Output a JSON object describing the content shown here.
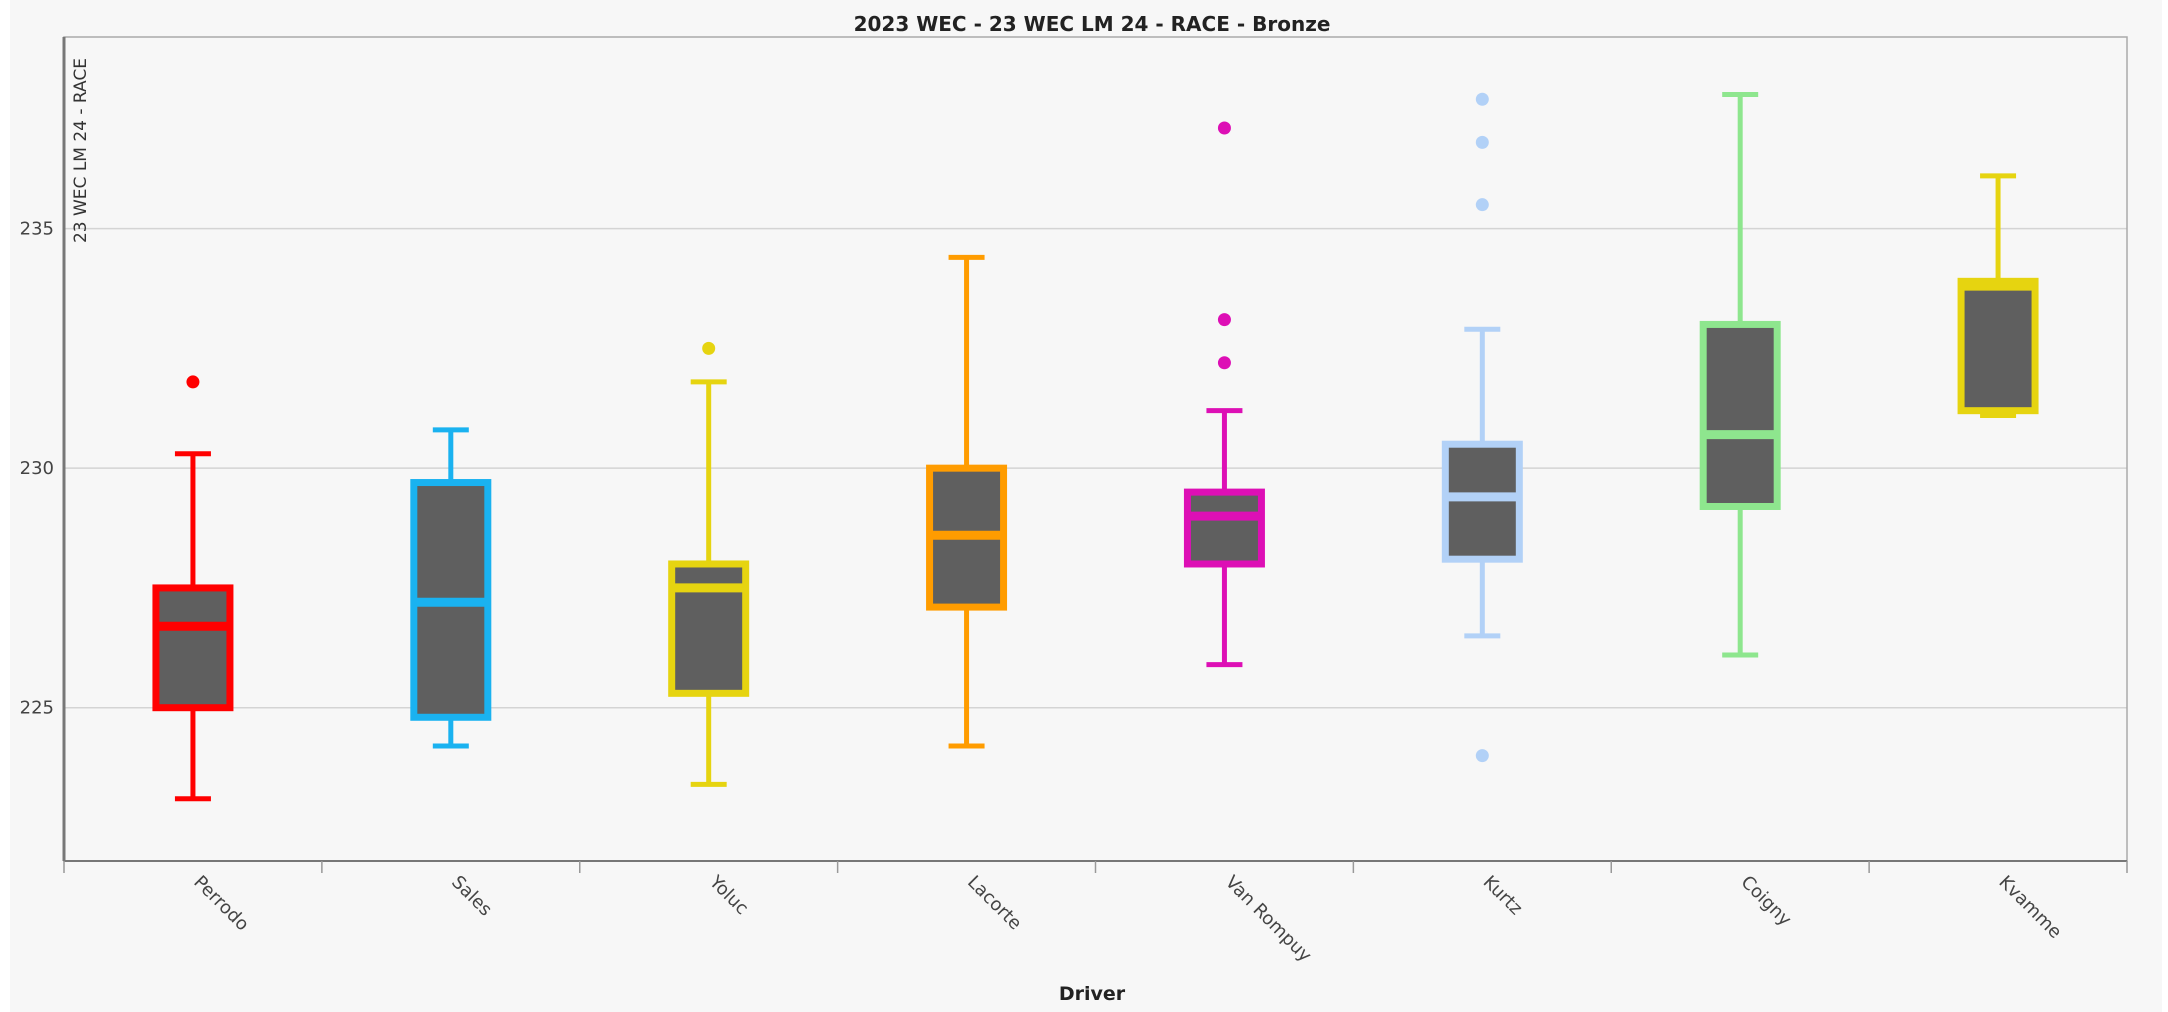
{
  "chart_data": {
    "type": "box",
    "title": "2023 WEC - 23 WEC LM 24 - RACE -  Bronze",
    "xlabel": "Driver",
    "ylabel": "23 WEC LM 24 - RACE",
    "ylim": [
      221.8,
      239.0
    ],
    "yticks": [
      225,
      230,
      235
    ],
    "grid": true,
    "box_fill": "#5f5f5f",
    "series": [
      {
        "name": "Perrodo",
        "color": "#ff0000",
        "whisker_low": 223.1,
        "q1": 225.0,
        "median": 226.7,
        "q3": 227.5,
        "whisker_high": 230.3,
        "outliers": [
          231.8
        ]
      },
      {
        "name": "Sales",
        "color": "#1ab2f0",
        "whisker_low": 224.2,
        "q1": 224.8,
        "median": 227.2,
        "q3": 229.7,
        "whisker_high": 230.8,
        "outliers": []
      },
      {
        "name": "Yoluc",
        "color": "#e6d410",
        "whisker_low": 223.4,
        "q1": 225.3,
        "median": 227.5,
        "q3": 228.0,
        "whisker_high": 231.8,
        "outliers": [
          232.5
        ]
      },
      {
        "name": "Lacorte",
        "color": "#ff9c00",
        "whisker_low": 224.2,
        "q1": 227.1,
        "median": 228.6,
        "q3": 230.0,
        "whisker_high": 234.4,
        "outliers": []
      },
      {
        "name": "Van Rompuy",
        "color": "#dd0fb5",
        "whisker_low": 225.9,
        "q1": 228.0,
        "median": 229.0,
        "q3": 229.5,
        "whisker_high": 231.2,
        "outliers": [
          237.1,
          233.1,
          232.2
        ]
      },
      {
        "name": "Kurtz",
        "color": "#b2d1f7",
        "whisker_low": 226.5,
        "q1": 228.1,
        "median": 229.4,
        "q3": 230.5,
        "whisker_high": 232.9,
        "outliers": [
          237.7,
          236.8,
          235.5,
          224.0
        ]
      },
      {
        "name": "Coigny",
        "color": "#8ee68e",
        "whisker_low": 226.1,
        "q1": 229.2,
        "median": 230.7,
        "q3": 233.0,
        "whisker_high": 237.8,
        "outliers": []
      },
      {
        "name": "Kvamme",
        "color": "#e6d410",
        "whisker_low": 231.1,
        "q1": 231.2,
        "median": 233.8,
        "q3": 233.9,
        "whisker_high": 236.1,
        "outliers": []
      }
    ]
  }
}
